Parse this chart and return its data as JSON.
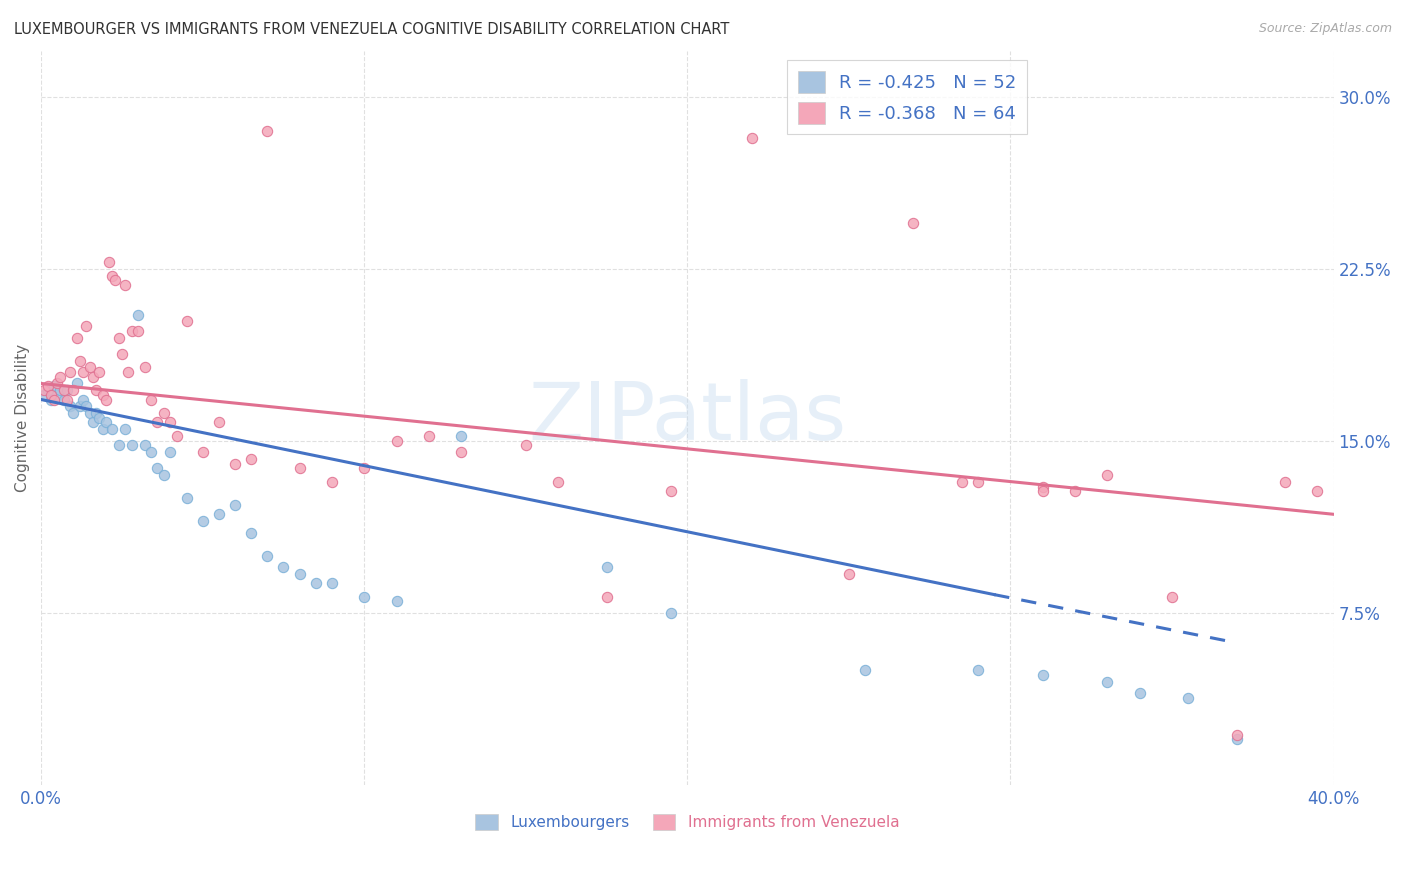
{
  "title": "LUXEMBOURGER VS IMMIGRANTS FROM VENEZUELA COGNITIVE DISABILITY CORRELATION CHART",
  "source": "Source: ZipAtlas.com",
  "ylabel": "Cognitive Disability",
  "yticks": [
    "7.5%",
    "15.0%",
    "22.5%",
    "30.0%"
  ],
  "ytick_vals": [
    0.075,
    0.15,
    0.225,
    0.3
  ],
  "xlim": [
    0.0,
    0.4
  ],
  "ylim": [
    0.0,
    0.32
  ],
  "legend_entries": [
    {
      "label": "R = -0.425   N = 52",
      "color": "#a8c4e0"
    },
    {
      "label": "R = -0.368   N = 64",
      "color": "#f4a7b9"
    }
  ],
  "scatter_blue": {
    "color": "#a8c4e0",
    "edge_color": "#7ab0d8",
    "alpha": 0.85,
    "size": 55,
    "x": [
      0.001,
      0.002,
      0.003,
      0.004,
      0.005,
      0.006,
      0.007,
      0.008,
      0.009,
      0.01,
      0.011,
      0.012,
      0.013,
      0.014,
      0.015,
      0.016,
      0.017,
      0.018,
      0.019,
      0.02,
      0.022,
      0.024,
      0.026,
      0.028,
      0.03,
      0.032,
      0.034,
      0.036,
      0.038,
      0.04,
      0.045,
      0.05,
      0.055,
      0.06,
      0.065,
      0.07,
      0.075,
      0.08,
      0.085,
      0.09,
      0.1,
      0.11,
      0.13,
      0.175,
      0.195,
      0.255,
      0.29,
      0.31,
      0.33,
      0.34,
      0.355,
      0.37
    ],
    "y": [
      0.17,
      0.172,
      0.168,
      0.174,
      0.17,
      0.172,
      0.168,
      0.172,
      0.165,
      0.162,
      0.175,
      0.165,
      0.168,
      0.165,
      0.162,
      0.158,
      0.162,
      0.16,
      0.155,
      0.158,
      0.155,
      0.148,
      0.155,
      0.148,
      0.205,
      0.148,
      0.145,
      0.138,
      0.135,
      0.145,
      0.125,
      0.115,
      0.118,
      0.122,
      0.11,
      0.1,
      0.095,
      0.092,
      0.088,
      0.088,
      0.082,
      0.08,
      0.152,
      0.095,
      0.075,
      0.05,
      0.05,
      0.048,
      0.045,
      0.04,
      0.038,
      0.02
    ]
  },
  "scatter_pink": {
    "color": "#f4a7b9",
    "edge_color": "#e07090",
    "alpha": 0.85,
    "size": 55,
    "x": [
      0.001,
      0.002,
      0.003,
      0.004,
      0.005,
      0.006,
      0.007,
      0.008,
      0.009,
      0.01,
      0.011,
      0.012,
      0.013,
      0.014,
      0.015,
      0.016,
      0.017,
      0.018,
      0.019,
      0.02,
      0.021,
      0.022,
      0.023,
      0.024,
      0.025,
      0.026,
      0.027,
      0.028,
      0.03,
      0.032,
      0.034,
      0.036,
      0.038,
      0.04,
      0.042,
      0.045,
      0.05,
      0.055,
      0.06,
      0.065,
      0.07,
      0.08,
      0.09,
      0.1,
      0.11,
      0.12,
      0.13,
      0.15,
      0.16,
      0.175,
      0.195,
      0.22,
      0.25,
      0.285,
      0.31,
      0.33,
      0.35,
      0.37,
      0.385,
      0.395,
      0.27,
      0.29,
      0.31,
      0.32
    ],
    "y": [
      0.172,
      0.174,
      0.17,
      0.168,
      0.175,
      0.178,
      0.172,
      0.168,
      0.18,
      0.172,
      0.195,
      0.185,
      0.18,
      0.2,
      0.182,
      0.178,
      0.172,
      0.18,
      0.17,
      0.168,
      0.228,
      0.222,
      0.22,
      0.195,
      0.188,
      0.218,
      0.18,
      0.198,
      0.198,
      0.182,
      0.168,
      0.158,
      0.162,
      0.158,
      0.152,
      0.202,
      0.145,
      0.158,
      0.14,
      0.142,
      0.285,
      0.138,
      0.132,
      0.138,
      0.15,
      0.152,
      0.145,
      0.148,
      0.132,
      0.082,
      0.128,
      0.282,
      0.092,
      0.132,
      0.13,
      0.135,
      0.082,
      0.022,
      0.132,
      0.128,
      0.245,
      0.132,
      0.128,
      0.128
    ]
  },
  "trendline_blue": {
    "color": "#4472c4",
    "linewidth": 2.2,
    "x_start": 0.0,
    "x_end": 0.37,
    "y_start": 0.168,
    "y_end": 0.062,
    "solid_end_x": 0.295,
    "solid_end_y": 0.083
  },
  "trendline_pink": {
    "color": "#e07090",
    "linewidth": 2.2,
    "x_start": 0.0,
    "x_end": 0.4,
    "y_start": 0.175,
    "y_end": 0.118
  },
  "watermark": "ZIPatlas",
  "background_color": "#ffffff",
  "grid_color": "#e0e0e0",
  "grid_style": "--",
  "title_color": "#333333",
  "axis_label_color": "#4472c4",
  "legend_labels": [
    "Luxembourgers",
    "Immigrants from Venezuela"
  ]
}
